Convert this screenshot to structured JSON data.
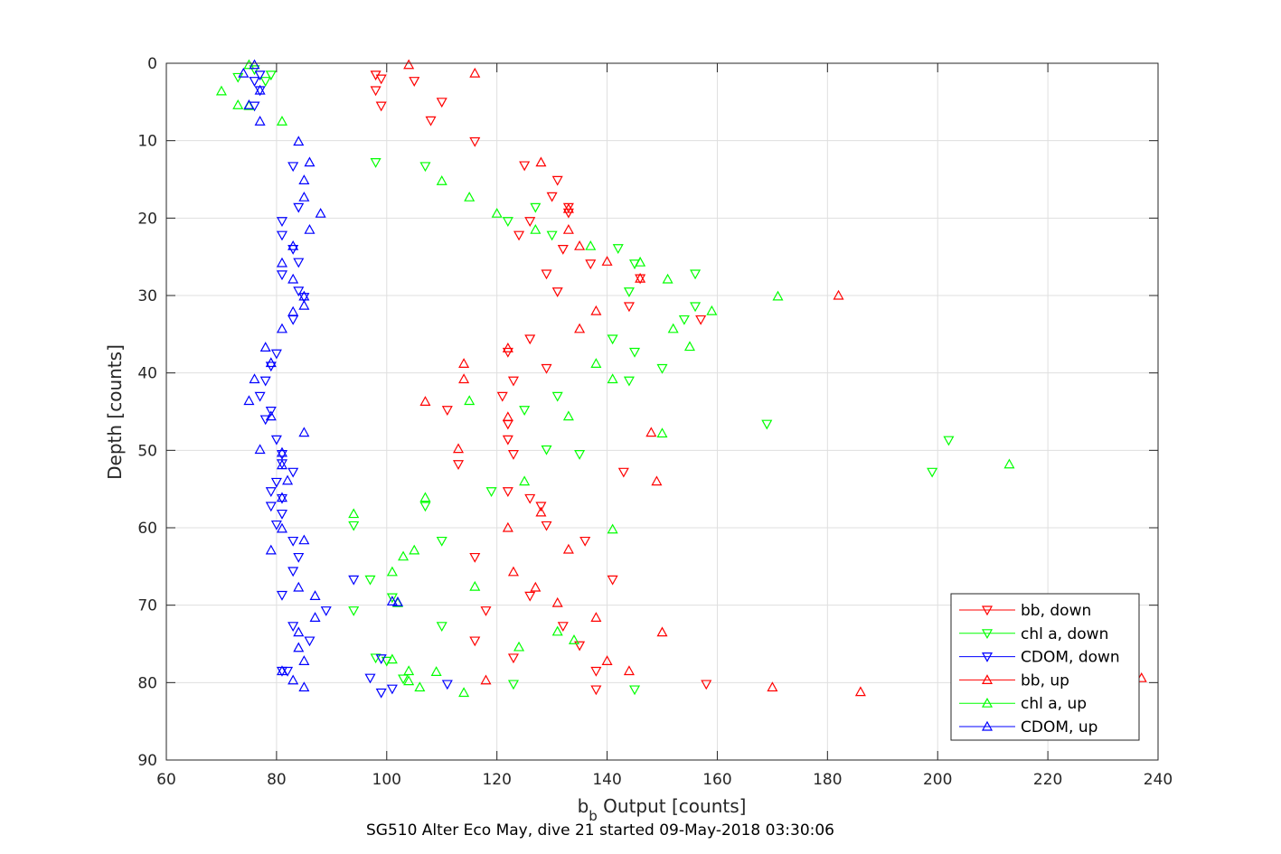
{
  "chart_data": {
    "type": "scatter",
    "xlabel_main": "b",
    "xlabel_sub": "b",
    "xlabel_rest": " Output [counts]",
    "ylabel": "Depth [counts]",
    "caption": "SG510 Alter Eco May, dive 21 started 09-May-2018 03:30:06",
    "xlim": [
      60,
      240
    ],
    "ylim": [
      0,
      90
    ],
    "y_reversed": true,
    "xticks": [
      "60",
      "80",
      "100",
      "120",
      "140",
      "160",
      "180",
      "200",
      "220",
      "240"
    ],
    "yticks": [
      "0",
      "10",
      "20",
      "30",
      "40",
      "50",
      "60",
      "70",
      "80",
      "90"
    ],
    "grid": true,
    "legend_position": "bottom-right",
    "colors": {
      "red": "#ff0000",
      "green": "#00ff00",
      "blue": "#0000ff"
    },
    "series": [
      {
        "name": "bb, down",
        "color": "#ff0000",
        "marker": "triangle-down",
        "points": [
          [
            98,
            1.5
          ],
          [
            99,
            2
          ],
          [
            98,
            3.5
          ],
          [
            99,
            5.5
          ],
          [
            105,
            2.3
          ],
          [
            110,
            5
          ],
          [
            108,
            7.4
          ],
          [
            116,
            10.1
          ],
          [
            125,
            13.2
          ],
          [
            131,
            15.1
          ],
          [
            130,
            17.2
          ],
          [
            133,
            18.6
          ],
          [
            133,
            19.3
          ],
          [
            126,
            20.4
          ],
          [
            124,
            22.2
          ],
          [
            132,
            24
          ],
          [
            137,
            25.9
          ],
          [
            146,
            27.8
          ],
          [
            129,
            27.2
          ],
          [
            131,
            29.5
          ],
          [
            144,
            31.4
          ],
          [
            157,
            33.1
          ],
          [
            126,
            35.6
          ],
          [
            122,
            37.3
          ],
          [
            129,
            39.4
          ],
          [
            123,
            41
          ],
          [
            121,
            43
          ],
          [
            111,
            44.8
          ],
          [
            122,
            46.6
          ],
          [
            122,
            48.6
          ],
          [
            123,
            50.5
          ],
          [
            113,
            51.8
          ],
          [
            143,
            52.8
          ],
          [
            122,
            55.3
          ],
          [
            126,
            56.2
          ],
          [
            128,
            57.2
          ],
          [
            129,
            59.7
          ],
          [
            136,
            61.7
          ],
          [
            116,
            63.8
          ],
          [
            141,
            66.7
          ],
          [
            126,
            68.8
          ],
          [
            118,
            70.7
          ],
          [
            132,
            72.7
          ],
          [
            116,
            74.6
          ],
          [
            135,
            75.2
          ],
          [
            123,
            76.8
          ],
          [
            138,
            78.5
          ],
          [
            158,
            80.2
          ],
          [
            138,
            80.9
          ]
        ]
      },
      {
        "name": "chl a, down",
        "color": "#00ff00",
        "marker": "triangle-down",
        "points": [
          [
            76,
            0.8
          ],
          [
            79,
            1.5
          ],
          [
            73,
            1.8
          ],
          [
            78,
            2.3
          ],
          [
            98,
            12.8
          ],
          [
            107,
            13.3
          ],
          [
            122,
            20.4
          ],
          [
            127,
            18.6
          ],
          [
            130,
            22.2
          ],
          [
            142,
            23.9
          ],
          [
            145,
            25.9
          ],
          [
            156,
            27.2
          ],
          [
            144,
            29.5
          ],
          [
            156,
            31.4
          ],
          [
            154,
            33.1
          ],
          [
            141,
            35.6
          ],
          [
            145,
            37.3
          ],
          [
            150,
            39.4
          ],
          [
            144,
            41
          ],
          [
            131,
            43
          ],
          [
            125,
            44.8
          ],
          [
            169,
            46.6
          ],
          [
            202,
            48.7
          ],
          [
            129,
            49.9
          ],
          [
            135,
            50.5
          ],
          [
            199,
            52.8
          ],
          [
            119,
            55.3
          ],
          [
            107,
            57.2
          ],
          [
            94,
            59.7
          ],
          [
            110,
            61.7
          ],
          [
            97,
            66.7
          ],
          [
            101,
            69
          ],
          [
            94,
            70.7
          ],
          [
            110,
            72.7
          ],
          [
            98,
            76.8
          ],
          [
            103,
            79.5
          ],
          [
            100,
            77.2
          ],
          [
            123,
            80.2
          ],
          [
            145,
            80.9
          ]
        ]
      },
      {
        "name": "CDOM, down",
        "color": "#0000ff",
        "marker": "triangle-down",
        "points": [
          [
            77,
            1.5
          ],
          [
            76,
            2.3
          ],
          [
            77,
            3.5
          ],
          [
            76,
            5.5
          ],
          [
            83,
            13.3
          ],
          [
            84,
            18.6
          ],
          [
            81,
            20.4
          ],
          [
            81,
            22.2
          ],
          [
            83,
            24
          ],
          [
            84,
            25.7
          ],
          [
            81,
            27.3
          ],
          [
            84,
            29.4
          ],
          [
            85,
            30.2
          ],
          [
            83,
            33.1
          ],
          [
            80,
            37.5
          ],
          [
            79,
            39.1
          ],
          [
            78,
            41
          ],
          [
            77,
            43
          ],
          [
            79,
            44.9
          ],
          [
            78,
            46
          ],
          [
            80,
            48.6
          ],
          [
            81,
            50.5
          ],
          [
            81,
            51.7
          ],
          [
            83,
            52.8
          ],
          [
            80,
            54.1
          ],
          [
            79,
            55.3
          ],
          [
            81,
            56.2
          ],
          [
            79,
            57.2
          ],
          [
            81,
            58.2
          ],
          [
            80,
            59.6
          ],
          [
            83,
            61.7
          ],
          [
            84,
            63.8
          ],
          [
            83,
            65.6
          ],
          [
            94,
            66.7
          ],
          [
            81,
            68.7
          ],
          [
            89,
            70.7
          ],
          [
            83,
            72.7
          ],
          [
            86,
            74.6
          ],
          [
            81,
            78.5
          ],
          [
            82,
            78.5
          ],
          [
            99,
            76.9
          ],
          [
            97,
            79.4
          ],
          [
            101,
            80.8
          ],
          [
            111,
            80.2
          ],
          [
            99,
            81.3
          ]
        ]
      },
      {
        "name": "bb, up",
        "color": "#ff0000",
        "marker": "triangle-up",
        "points": [
          [
            104,
            0.2
          ],
          [
            116,
            1.3
          ],
          [
            128,
            12.8
          ],
          [
            133,
            18.8
          ],
          [
            133,
            21.5
          ],
          [
            135,
            23.6
          ],
          [
            140,
            25.6
          ],
          [
            146,
            27.8
          ],
          [
            182,
            30
          ],
          [
            138,
            32
          ],
          [
            135,
            34.3
          ],
          [
            122,
            36.8
          ],
          [
            114,
            38.8
          ],
          [
            114,
            40.8
          ],
          [
            107,
            43.7
          ],
          [
            122,
            45.7
          ],
          [
            148,
            47.7
          ],
          [
            113,
            49.8
          ],
          [
            149,
            54
          ],
          [
            128,
            58
          ],
          [
            122,
            60
          ],
          [
            133,
            62.8
          ],
          [
            123,
            65.7
          ],
          [
            127,
            67.7
          ],
          [
            131,
            69.7
          ],
          [
            138,
            71.6
          ],
          [
            150,
            73.5
          ],
          [
            140,
            77.2
          ],
          [
            144,
            78.5
          ],
          [
            118,
            79.7
          ],
          [
            170,
            80.6
          ],
          [
            186,
            81.2
          ],
          [
            237,
            79.4
          ]
        ]
      },
      {
        "name": "chl a, up",
        "color": "#00ff00",
        "marker": "triangle-up",
        "points": [
          [
            75,
            0.2
          ],
          [
            70,
            3.6
          ],
          [
            73,
            5.4
          ],
          [
            75,
            5.5
          ],
          [
            81,
            7.5
          ],
          [
            110,
            15.2
          ],
          [
            115,
            17.3
          ],
          [
            120,
            19.4
          ],
          [
            127,
            21.5
          ],
          [
            137,
            23.6
          ],
          [
            146,
            25.7
          ],
          [
            151,
            27.9
          ],
          [
            171,
            30.1
          ],
          [
            159,
            32
          ],
          [
            152,
            34.3
          ],
          [
            155,
            36.6
          ],
          [
            138,
            38.8
          ],
          [
            141,
            40.8
          ],
          [
            115,
            43.6
          ],
          [
            133,
            45.6
          ],
          [
            150,
            47.8
          ],
          [
            213,
            51.8
          ],
          [
            125,
            54
          ],
          [
            107,
            56.1
          ],
          [
            94,
            58.2
          ],
          [
            141,
            60.2
          ],
          [
            105,
            62.9
          ],
          [
            103,
            63.7
          ],
          [
            101,
            65.7
          ],
          [
            116,
            67.6
          ],
          [
            102,
            69.7
          ],
          [
            131,
            73.4
          ],
          [
            134,
            74.5
          ],
          [
            124,
            75.4
          ],
          [
            101,
            77
          ],
          [
            104,
            78.5
          ],
          [
            109,
            78.6
          ],
          [
            104,
            79.8
          ],
          [
            106,
            80.6
          ],
          [
            114,
            81.3
          ]
        ]
      },
      {
        "name": "CDOM, up",
        "color": "#0000ff",
        "marker": "triangle-up",
        "points": [
          [
            76,
            0.2
          ],
          [
            74,
            1.3
          ],
          [
            77,
            3.5
          ],
          [
            75,
            5.4
          ],
          [
            77,
            7.5
          ],
          [
            84,
            10.1
          ],
          [
            86,
            12.8
          ],
          [
            85,
            15.1
          ],
          [
            85,
            17.3
          ],
          [
            88,
            19.4
          ],
          [
            86,
            21.5
          ],
          [
            83,
            23.6
          ],
          [
            81,
            25.8
          ],
          [
            83,
            27.9
          ],
          [
            85,
            30.1
          ],
          [
            85,
            31.3
          ],
          [
            83,
            32.1
          ],
          [
            81,
            34.3
          ],
          [
            78,
            36.7
          ],
          [
            79,
            38.7
          ],
          [
            76,
            40.8
          ],
          [
            75,
            43.6
          ],
          [
            79,
            45.6
          ],
          [
            85,
            47.7
          ],
          [
            77,
            49.9
          ],
          [
            81,
            50.3
          ],
          [
            81,
            51.9
          ],
          [
            82,
            53.9
          ],
          [
            81,
            56.1
          ],
          [
            81,
            60.1
          ],
          [
            79,
            62.9
          ],
          [
            85,
            61.6
          ],
          [
            84,
            67.7
          ],
          [
            87,
            68.8
          ],
          [
            101,
            69.5
          ],
          [
            102,
            69.6
          ],
          [
            87,
            71.6
          ],
          [
            84,
            73.5
          ],
          [
            84,
            75.5
          ],
          [
            85,
            77.2
          ],
          [
            81,
            78.5
          ],
          [
            83,
            79.7
          ],
          [
            85,
            80.6
          ]
        ]
      }
    ]
  }
}
